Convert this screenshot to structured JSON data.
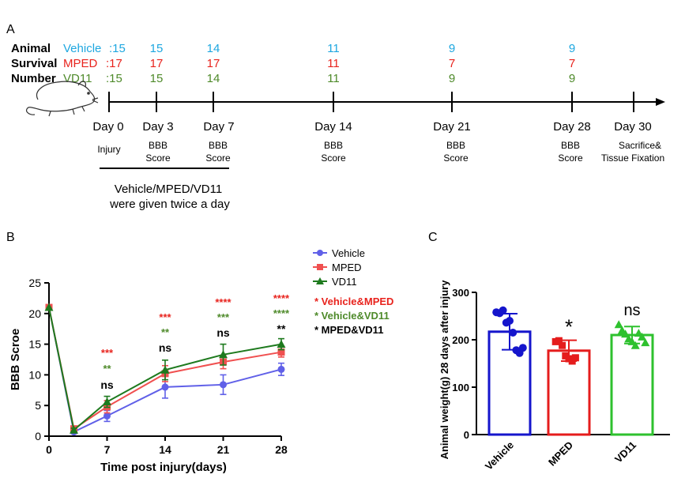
{
  "colors": {
    "vehicle": "#1ea7e0",
    "mped": "#e8231d",
    "vd11": "#4e8a2a",
    "line_vehicle": "#6060e8",
    "line_mped": "#f05050",
    "line_vd11": "#1e7a1e",
    "bar_vehicle": "#1515cc",
    "bar_mped": "#e51c1c",
    "bar_vd11": "#2ec12e",
    "black": "#000000"
  },
  "panel_a": {
    "letter": "A",
    "row_labels": [
      "Animal",
      "Survival",
      "Number"
    ],
    "group_labels": [
      "Vehicle",
      "MPED",
      "VD11"
    ],
    "counts": {
      "vehicle": [
        ":15",
        "15",
        "14",
        "11",
        "9",
        "9"
      ],
      "mped": [
        ":17",
        "17",
        "17",
        "11",
        "7",
        "7"
      ],
      "vd11": [
        ":15",
        "15",
        "14",
        "11",
        "9",
        "9"
      ]
    },
    "days": [
      "Day 0",
      "Day 3",
      "Day 7",
      "Day 14",
      "Day 21",
      "Day 28",
      "Day 30"
    ],
    "events": [
      [
        "Injury"
      ],
      [
        "BBB",
        "Score"
      ],
      [
        "BBB",
        "Score"
      ],
      [
        "BBB",
        "Score"
      ],
      [
        "BBB",
        "Score"
      ],
      [
        "BBB",
        "Score"
      ],
      [
        "Sacrifice&",
        "Tissue Fixation"
      ]
    ],
    "treatment_line1": "Vehicle/MPED/VD11",
    "treatment_line2": "were given twice a day"
  },
  "chart_data": [
    {
      "panel": "B",
      "type": "line",
      "xlabel": "Time post injury(days)",
      "ylabel": "BBB Scroe",
      "x": [
        0,
        3,
        7,
        14,
        21,
        28
      ],
      "xticks": [
        0,
        7,
        14,
        21,
        28
      ],
      "yticks": [
        0,
        5,
        10,
        15,
        20,
        25
      ],
      "xlim": [
        0,
        28
      ],
      "ylim": [
        0,
        25
      ],
      "series": [
        {
          "name": "Vehicle",
          "marker": "circle",
          "values": [
            21,
            0.7,
            3.3,
            8.0,
            8.4,
            10.9
          ],
          "err": [
            0,
            0.3,
            0.9,
            1.8,
            1.6,
            1.0
          ]
        },
        {
          "name": "MPED",
          "marker": "square",
          "values": [
            21,
            1.2,
            4.8,
            10.2,
            12.1,
            13.7
          ],
          "err": [
            0,
            0.3,
            1.0,
            1.3,
            1.1,
            0.8
          ]
        },
        {
          "name": "VD11",
          "marker": "triangle",
          "values": [
            21,
            1.0,
            5.6,
            10.8,
            13.3,
            15.0
          ],
          "err": [
            0,
            0.3,
            0.9,
            1.6,
            1.7,
            0.9
          ]
        }
      ],
      "significance": [
        {
          "x": 7,
          "mped": "***",
          "vd11": "**",
          "mped_vd11": "ns"
        },
        {
          "x": 14,
          "mped": "***",
          "vd11": "**",
          "mped_vd11": "ns"
        },
        {
          "x": 21,
          "mped": "****",
          "vd11": "***",
          "mped_vd11": "ns"
        },
        {
          "x": 28,
          "mped": "****",
          "vd11": "****",
          "mped_vd11": "**"
        }
      ],
      "comparison_legend": [
        "* Vehicle&MPED",
        "* Vehicle&VD11",
        "* MPED&VD11"
      ],
      "legend_position": "top-right"
    },
    {
      "panel": "C",
      "type": "bar",
      "ylabel": "Animal weight(g) 28 days after injury",
      "categories": [
        "Vehicle",
        "MPED",
        "VD11"
      ],
      "values": [
        217,
        177,
        210
      ],
      "err": [
        38,
        22,
        18
      ],
      "ylim": [
        0,
        300
      ],
      "yticks": [
        0,
        100,
        200,
        300
      ],
      "annotations": [
        "",
        "*",
        "ns"
      ],
      "points": [
        [
          258,
          256,
          262,
          236,
          240,
          215,
          178,
          172,
          183
        ],
        [
          196,
          198,
          188,
          166,
          160,
          155,
          162
        ],
        [
          232,
          220,
          212,
          202,
          196,
          188,
          214,
          206,
          194
        ]
      ]
    }
  ]
}
